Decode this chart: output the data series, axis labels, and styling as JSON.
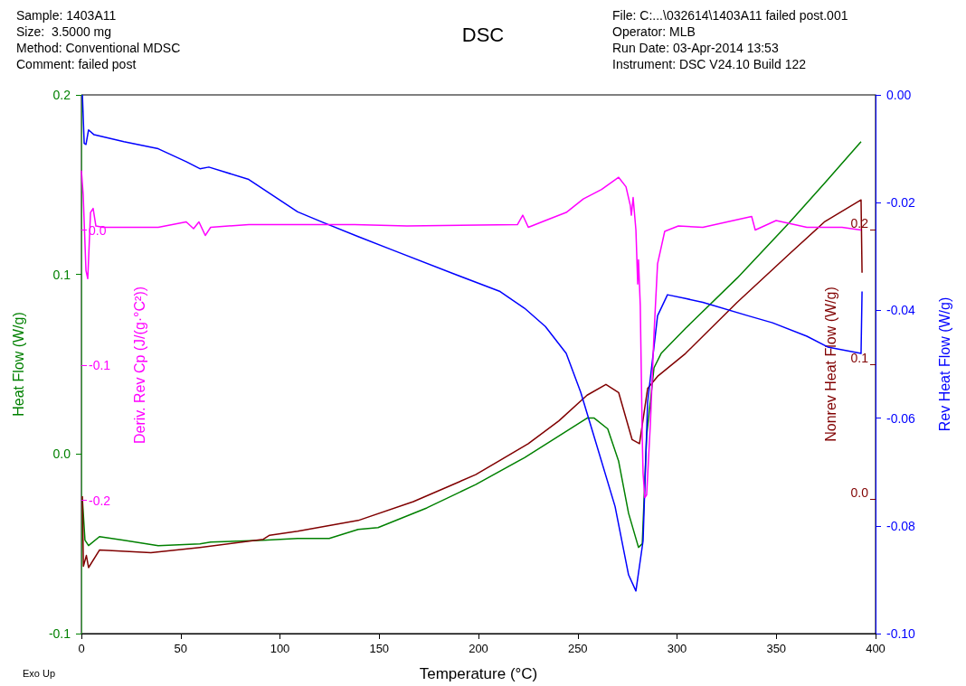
{
  "chart_data": [
    {
      "type": "line",
      "title": "DSC",
      "xlabel": "Temperature (°C)",
      "ylabel": "Heat Flow (W/g)",
      "y2label": "Rev Heat Flow (W/g)",
      "y3label": "Nonrev Heat Flow (W/g)",
      "xlim": [
        0,
        400
      ],
      "xticks": [
        0,
        50,
        100,
        150,
        200,
        250,
        300,
        350,
        400
      ],
      "ylim": [
        -0.1,
        0.2
      ],
      "yticks": [
        -0.1,
        {
          "value": 0,
          "label": "0.0"
        },
        0.1,
        0.2
      ],
      "y2lim": [
        -0.1,
        0
      ],
      "y2ticks": [
        {
          "value": -0.1,
          "label": "-0.10"
        },
        -0.08,
        -0.06,
        -0.04,
        -0.02,
        {
          "value": 0,
          "label": "0.00"
        }
      ],
      "y3lim": [
        -0.1,
        0.3
      ],
      "y3ticks": [
        {
          "value": 0,
          "label": "0.0"
        },
        0.1,
        0.2
      ],
      "grid": false,
      "annotations": [
        "Sample: 1403A11",
        "Size:  3.5000 mg",
        "Method: Conventional MDSC",
        "Comment: failed post",
        "File: C:...\\032614\\1403A11 failed post.001",
        "Operator: MLB",
        "Run Date: 03-Apr-2014 13:53",
        "Instrument: DSC V24.10 Build 122",
        "Exo Up"
      ],
      "series": [
        {
          "color": "#008000",
          "x": [
            0.5,
            1.8,
            3.6,
            9.1,
            21.4,
            38.7,
            59.7,
            65.1,
            91.6,
            108.9,
            124.8,
            139.4,
            149.4,
            174,
            198.6,
            223.2,
            240.5,
            254.7,
            258.3,
            265.1,
            270.6,
            275.6,
            280.6,
            282.5,
            284.7,
            288.4,
            292,
            304.3,
            330.3,
            356.7,
            374.5,
            392.7
          ],
          "values": [
            -0.025,
            -0.048,
            -0.051,
            -0.046,
            -0.048,
            -0.051,
            -0.05,
            -0.049,
            -0.048,
            -0.047,
            -0.047,
            -0.042,
            -0.041,
            -0.03,
            -0.017,
            -0.002,
            0.01,
            0.02,
            0.02,
            0.014,
            -0.004,
            -0.033,
            -0.052,
            -0.05,
            0.01,
            0.048,
            0.056,
            0.07,
            0.098,
            0.129,
            0.151,
            0.174
          ]
        },
        {
          "color": "#800000",
          "axis": "y3",
          "x": [
            0.5,
            1,
            2.5,
            3.6,
            9.1,
            35,
            59.7,
            91.6,
            94.8,
            108.9,
            139.4,
            167.2,
            198.6,
            225.1,
            240.5,
            254.7,
            264.2,
            270.6,
            277.4,
            281.1,
            282.9,
            285.2,
            290.2,
            304.3,
            330.3,
            356.7,
            374.5,
            392.7,
            393.2
          ],
          "values": [
            0.002,
            -0.05,
            -0.042,
            -0.051,
            -0.038,
            -0.04,
            -0.036,
            -0.03,
            -0.027,
            -0.024,
            -0.016,
            -0.002,
            0.018,
            0.041,
            0.058,
            0.077,
            0.085,
            0.079,
            0.044,
            0.041,
            0.059,
            0.082,
            0.091,
            0.108,
            0.146,
            0.182,
            0.206,
            0.222,
            0.168
          ]
        },
        {
          "color": "#0000ff",
          "axis": "y2",
          "x": [
            0.5,
            1.4,
            2.3,
            3.6,
            6.4,
            21.4,
            38.7,
            52.8,
            59.7,
            64.2,
            84.3,
            108.9,
            121.2,
            139.4,
            156.7,
            188.2,
            210.9,
            223.2,
            233.7,
            244.2,
            251.5,
            258.3,
            268.8,
            275.6,
            279.3,
            282.9,
            285.2,
            290.2,
            295.2,
            304.3,
            313,
            335.8,
            348.1,
            365.4,
            375.9,
            392.7,
            393.2
          ],
          "values": [
            0,
            -0.009,
            -0.0092,
            -0.0065,
            -0.0074,
            -0.0087,
            -0.01,
            -0.0124,
            -0.0137,
            -0.0134,
            -0.0157,
            -0.0217,
            -0.0236,
            -0.0263,
            -0.0288,
            -0.0333,
            -0.0365,
            -0.0396,
            -0.043,
            -0.048,
            -0.0552,
            -0.0635,
            -0.0764,
            -0.0891,
            -0.0921,
            -0.0828,
            -0.057,
            -0.041,
            -0.0371,
            -0.0378,
            -0.0385,
            -0.041,
            -0.0423,
            -0.0448,
            -0.0468,
            -0.048,
            -0.0365
          ]
        }
      ]
    },
    {
      "type": "line",
      "ylabel": "Deriv. Rev Cp (J/(g·°C²))",
      "xlim": [
        0,
        400
      ],
      "ylim": [
        -0.3,
        0.1
      ],
      "yticks": [
        -0.2,
        -0.1,
        {
          "value": 0,
          "label": "0.0"
        }
      ],
      "tick_labels": "y",
      "series": [
        {
          "color": "#ff00ff",
          "x": [
            0,
            0.9,
            2.3,
            3.2,
            4.6,
            5.9,
            7.3,
            10.9,
            38.7,
            52.8,
            56.5,
            59.2,
            62.4,
            65.1,
            84.3,
            137.6,
            164,
            219.6,
            222.3,
            225.1,
            233.7,
            244.2,
            252.8,
            262,
            270.6,
            274.3,
            276.5,
            277,
            277.9,
            279.3,
            280.2,
            280.6,
            281.5,
            282.5,
            282.9,
            283.8,
            284.7,
            286.6,
            288.4,
            290.2,
            293.8,
            300.7,
            313,
            337.6,
            339.4,
            349.9,
            365.4,
            383.1,
            392.7
          ],
          "values": [
            0.044,
            0.026,
            -0.03,
            -0.036,
            0.013,
            0.016,
            0.003,
            0.002,
            0.002,
            0.006,
            0.001,
            0.006,
            -0.004,
            0.002,
            0.004,
            0.004,
            0.003,
            0.004,
            0.011,
            0.002,
            0.007,
            0.013,
            0.023,
            0.03,
            0.039,
            0.032,
            0.018,
            0.011,
            0.024,
            0,
            -0.04,
            -0.022,
            -0.056,
            -0.154,
            -0.18,
            -0.198,
            -0.196,
            -0.143,
            -0.077,
            -0.025,
            -0.001,
            0.003,
            0.002,
            0.01,
            0,
            0.007,
            0.002,
            0.002,
            0
          ]
        }
      ]
    }
  ]
}
